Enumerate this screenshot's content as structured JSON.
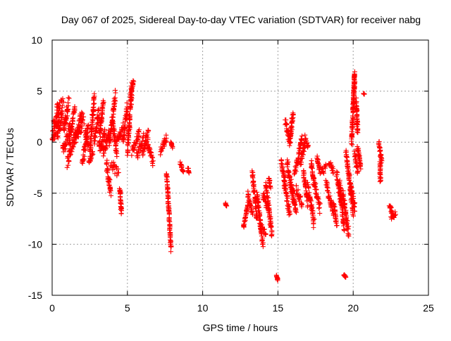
{
  "chart_data": {
    "type": "scatter",
    "title": "Day 067 of 2025, Sidereal Day-to-day VTEC variation (SDTVAR) for receiver nabg",
    "xlabel": "GPS time / hours",
    "ylabel": "SDTVAR / TECUs",
    "xlim": [
      0,
      25
    ],
    "ylim": [
      -15,
      10
    ],
    "xticks": [
      0,
      5,
      10,
      15,
      20,
      25
    ],
    "yticks": [
      -15,
      -10,
      -5,
      0,
      5,
      10
    ],
    "grid": true,
    "marker": "plus",
    "series_color": "#ff0000",
    "series": [
      {
        "name": "SDTVAR",
        "segments": [
          [
            0.0,
            0.0,
            0.45,
            2.5,
            1.0
          ],
          [
            0.05,
            1.5,
            0.5,
            3.5,
            1.0
          ],
          [
            0.3,
            3.5,
            0.75,
            4.0,
            0.7
          ],
          [
            0.35,
            0.5,
            0.7,
            3.0,
            1.2
          ],
          [
            0.75,
            1.0,
            1.1,
            4.0,
            1.1
          ],
          [
            0.7,
            -1.0,
            1.2,
            1.5,
            1.3
          ],
          [
            1.1,
            0.0,
            1.5,
            3.0,
            1.2
          ],
          [
            1.0,
            -2.0,
            1.6,
            1.0,
            1.0
          ],
          [
            1.5,
            0.0,
            2.0,
            3.0,
            1.1
          ],
          [
            1.6,
            0.5,
            2.1,
            2.0,
            1.2
          ],
          [
            2.0,
            -2.0,
            2.4,
            1.5,
            1.1
          ],
          [
            2.2,
            1.0,
            2.4,
            -0.5,
            0.8
          ],
          [
            2.5,
            -1.0,
            2.8,
            4.5,
            1.2
          ],
          [
            2.45,
            -2.0,
            2.7,
            -1.0,
            0.5
          ],
          [
            2.8,
            0.0,
            3.1,
            3.0,
            1.0
          ],
          [
            3.1,
            0.0,
            3.4,
            4.0,
            1.1
          ],
          [
            3.2,
            -1.0,
            3.5,
            1.0,
            1.0
          ],
          [
            3.4,
            -1.0,
            3.8,
            1.0,
            1.0
          ],
          [
            3.6,
            -2.0,
            3.9,
            -5.0,
            1.0
          ],
          [
            3.8,
            0.0,
            4.2,
            4.5,
            1.2
          ],
          [
            3.9,
            -2.0,
            4.4,
            -3.0,
            1.0
          ],
          [
            4.0,
            2.0,
            4.3,
            -1.0,
            1.0
          ],
          [
            4.3,
            0.0,
            4.7,
            1.5,
            1.0
          ],
          [
            4.5,
            -4.5,
            4.6,
            -7.0,
            0.6
          ],
          [
            4.7,
            0.0,
            5.0,
            3.5,
            1.0
          ],
          [
            5.0,
            -1.0,
            5.3,
            5.5,
            1.3
          ],
          [
            5.2,
            4.5,
            5.4,
            5.8,
            0.5
          ],
          [
            5.3,
            -1.0,
            5.8,
            1.0,
            1.0
          ],
          [
            5.6,
            -1.5,
            6.1,
            0.5,
            1.0
          ],
          [
            6.0,
            -1.0,
            6.4,
            1.0,
            1.0
          ],
          [
            6.3,
            0.0,
            6.7,
            -2.0,
            0.8
          ],
          [
            7.2,
            -1.0,
            7.6,
            0.5,
            0.8
          ],
          [
            7.6,
            -3.0,
            7.9,
            -10.5,
            0.5
          ],
          [
            7.9,
            0.0,
            8.0,
            -0.5,
            0.2
          ],
          [
            8.5,
            -2.0,
            8.7,
            -3.0,
            0.3
          ],
          [
            9.0,
            -2.5,
            9.1,
            -3.0,
            0.2
          ],
          [
            11.5,
            -6.0,
            11.6,
            -6.3,
            0.1
          ],
          [
            12.7,
            -8.5,
            13.0,
            -6.0,
            0.5
          ],
          [
            13.0,
            -5.0,
            13.3,
            -7.0,
            0.5
          ],
          [
            13.3,
            -3.0,
            13.6,
            -7.5,
            0.8
          ],
          [
            13.6,
            -5.0,
            14.0,
            -10.0,
            0.8
          ],
          [
            13.8,
            -8.0,
            14.2,
            -9.0,
            0.5
          ],
          [
            14.0,
            -5.0,
            14.3,
            -6.5,
            0.8
          ],
          [
            14.2,
            -4.0,
            14.6,
            -9.0,
            1.0
          ],
          [
            14.4,
            -3.5,
            14.5,
            -4.5,
            0.3
          ],
          [
            14.9,
            -13.0,
            15.0,
            -13.5,
            0.2
          ],
          [
            15.2,
            -2.0,
            15.5,
            -4.0,
            0.8
          ],
          [
            15.4,
            -4.0,
            15.8,
            -7.0,
            1.0
          ],
          [
            15.5,
            2.0,
            15.8,
            0.0,
            0.9
          ],
          [
            15.8,
            0.0,
            16.0,
            3.0,
            0.7
          ],
          [
            15.6,
            -2.0,
            16.0,
            -5.5,
            1.0
          ],
          [
            15.9,
            -4.0,
            16.2,
            -7.0,
            0.8
          ],
          [
            16.1,
            -3.0,
            16.4,
            -1.5,
            0.8
          ],
          [
            16.2,
            -4.5,
            16.6,
            -6.0,
            0.8
          ],
          [
            16.4,
            -1.0,
            16.6,
            0.5,
            0.8
          ],
          [
            16.5,
            -2.0,
            16.8,
            0.0,
            0.8
          ],
          [
            16.7,
            -3.0,
            17.0,
            -6.0,
            0.9
          ],
          [
            16.8,
            0.5,
            17.0,
            -0.5,
            0.4
          ],
          [
            17.0,
            -4.5,
            17.4,
            -8.0,
            1.1
          ],
          [
            17.2,
            -2.0,
            17.4,
            -4.0,
            0.6
          ],
          [
            17.4,
            -4.0,
            17.8,
            -6.5,
            1.0
          ],
          [
            17.6,
            -1.5,
            17.8,
            -3.0,
            0.5
          ],
          [
            17.9,
            -3.0,
            18.2,
            -2.5,
            0.7
          ],
          [
            18.2,
            -4.0,
            18.7,
            -7.0,
            1.0
          ],
          [
            18.4,
            -2.0,
            18.7,
            -3.0,
            0.6
          ],
          [
            18.7,
            -6.0,
            18.9,
            -8.0,
            0.5
          ],
          [
            18.9,
            -3.0,
            19.2,
            -6.0,
            0.9
          ],
          [
            19.1,
            -4.0,
            19.4,
            -8.5,
            0.9
          ],
          [
            19.3,
            -5.0,
            19.7,
            -9.0,
            1.0
          ],
          [
            19.4,
            -13.0,
            19.5,
            -13.3,
            0.2
          ],
          [
            19.5,
            -1.0,
            19.7,
            -3.0,
            0.4
          ],
          [
            19.7,
            -3.0,
            20.0,
            -7.0,
            0.9
          ],
          [
            19.8,
            -4.0,
            20.1,
            -6.5,
            0.9
          ],
          [
            19.9,
            0.0,
            20.1,
            6.5,
            1.0
          ],
          [
            20.0,
            3.0,
            20.1,
            6.8,
            0.6
          ],
          [
            20.1,
            -1.0,
            20.3,
            -3.0,
            0.5
          ],
          [
            20.2,
            4.0,
            20.3,
            1.0,
            0.8
          ],
          [
            20.3,
            -0.5,
            20.5,
            -2.5,
            0.4
          ],
          [
            20.7,
            4.8,
            20.75,
            4.7,
            0.1
          ],
          [
            21.7,
            0.0,
            21.9,
            -2.0,
            0.4
          ],
          [
            21.8,
            -2.0,
            21.8,
            -3.8,
            0.2
          ],
          [
            22.4,
            -6.0,
            22.6,
            -7.0,
            0.5
          ],
          [
            22.5,
            -7.5,
            22.8,
            -7.0,
            0.5
          ]
        ]
      }
    ]
  }
}
